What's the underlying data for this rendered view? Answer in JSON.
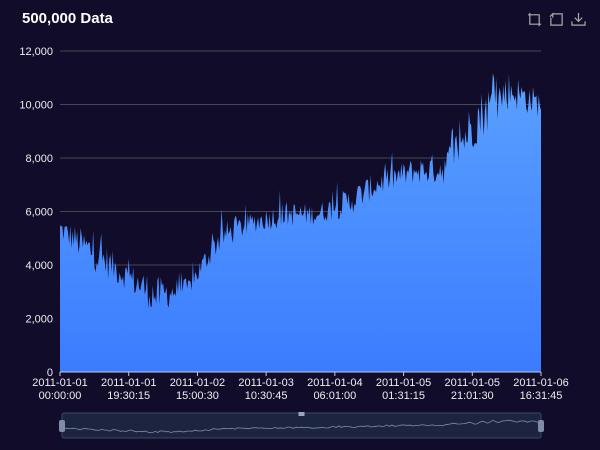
{
  "title": "500,000 Data",
  "toolbox": {
    "items": [
      {
        "name": "zoom-icon"
      },
      {
        "name": "zoom-reset-icon"
      },
      {
        "name": "download-icon"
      }
    ]
  },
  "colors": {
    "background": "#100c2a",
    "area_top": "#5aa0ff",
    "area_bottom": "#3b7cff",
    "grid": "#484753",
    "axis_text": "#eeeeee",
    "zoom_fill": "#2e3d63"
  },
  "chart_data": {
    "type": "area",
    "title": "500,000 Data",
    "xlabel": "",
    "ylabel": "",
    "ylim": [
      0,
      12000
    ],
    "yticks": [
      "0",
      "2,000",
      "4,000",
      "6,000",
      "8,000",
      "10,000",
      "12,000"
    ],
    "xticks": [
      [
        "2011-01-01",
        "00:00:00"
      ],
      [
        "2011-01-01",
        "19:30:15"
      ],
      [
        "2011-01-02",
        "15:00:30"
      ],
      [
        "2011-01-03",
        "10:30:45"
      ],
      [
        "2011-01-04",
        "06:01:00"
      ],
      [
        "2011-01-05",
        "01:31:15"
      ],
      [
        "2011-01-05",
        "21:01:30"
      ],
      [
        "2011-01-06",
        "16:31:45"
      ]
    ],
    "grid": true,
    "legend": "none",
    "series_envelope": {
      "x": [
        "2011-01-01 00:00:00",
        "2011-01-01 09:45:00",
        "2011-01-01 19:30:15",
        "2011-01-02 05:15:00",
        "2011-01-02 15:00:30",
        "2011-01-03 00:45:00",
        "2011-01-03 10:30:45",
        "2011-01-03 20:15:00",
        "2011-01-04 06:01:00",
        "2011-01-04 15:46:00",
        "2011-01-05 01:31:15",
        "2011-01-05 11:16:00",
        "2011-01-05 21:01:30",
        "2011-01-06 06:46:00",
        "2011-01-06 13:00:00",
        "2011-01-06 16:31:45"
      ],
      "upper": [
        5800,
        5200,
        4200,
        3600,
        3500,
        5600,
        6000,
        6400,
        6300,
        6900,
        7600,
        8000,
        8300,
        10500,
        11300,
        10500
      ],
      "lower": [
        4900,
        3800,
        3100,
        2100,
        2800,
        4500,
        5200,
        5400,
        5500,
        5800,
        6600,
        7000,
        7000,
        8500,
        9800,
        9500
      ]
    },
    "datazoom": {
      "start": 0,
      "end": 100
    }
  }
}
